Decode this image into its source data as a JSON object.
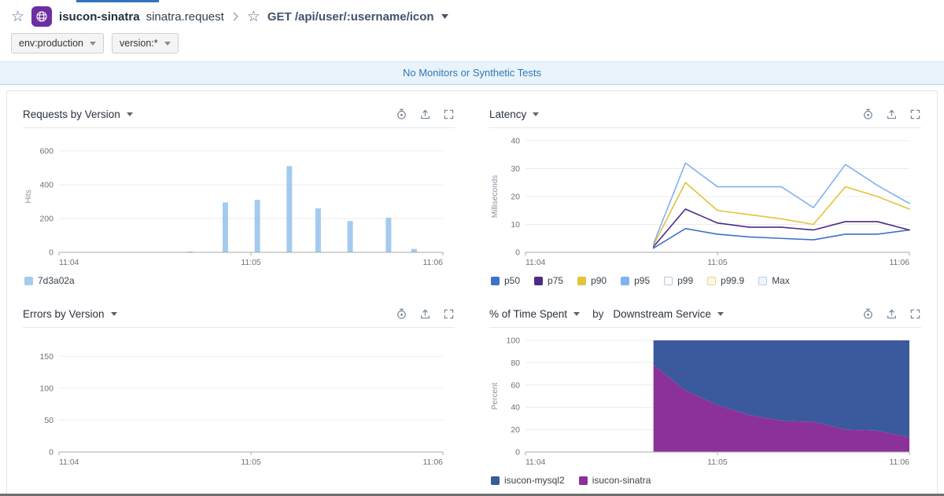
{
  "page": {
    "active_tab_indicator_color": "#3273bd"
  },
  "header": {
    "star_glyph": "☆",
    "service_name": "isucon-sinatra",
    "operation_name": "sinatra.request",
    "resource_name": "GET /api/user/:username/icon",
    "brand_color": "#6c2fa2",
    "service_icon": "globe-icon"
  },
  "filters": {
    "env": "env:production",
    "version": "version:*"
  },
  "banner": {
    "text": "No Monitors or Synthetic Tests",
    "text_color": "#3178b4",
    "bg_color": "#e9f3fb"
  },
  "panel_icons": [
    "create-monitor-icon",
    "export-icon",
    "fullscreen-icon"
  ],
  "chart_data": {
    "requests": {
      "type": "bar",
      "title": "Requests by Version",
      "ylabel": "Hits",
      "ymax": 660,
      "yticks": [
        0,
        200,
        400,
        600
      ],
      "x_start": "11:04:00",
      "x_end": "11:06:00",
      "xticks": [
        "11:04",
        "11:05",
        "11:06"
      ],
      "bar_color": "#a4cbee",
      "bars": [
        {
          "t": "11:04:41",
          "v": 5
        },
        {
          "t": "11:04:52",
          "v": 295
        },
        {
          "t": "11:05:02",
          "v": 310
        },
        {
          "t": "11:05:12",
          "v": 510
        },
        {
          "t": "11:05:21",
          "v": 260
        },
        {
          "t": "11:05:31",
          "v": 185
        },
        {
          "t": "11:05:43",
          "v": 205
        },
        {
          "t": "11:05:51",
          "v": 20
        }
      ],
      "legend": [
        {
          "label": "7d3a02a",
          "swatch": "#a4cbee",
          "border": "#a4cbee"
        }
      ]
    },
    "latency": {
      "type": "line",
      "title": "Latency",
      "ylabel": "Milliseconds",
      "ymax": 40,
      "yticks": [
        0,
        10,
        20,
        30,
        40
      ],
      "x_start": "11:04:00",
      "x_end": "11:06:00",
      "xticks": [
        "11:04",
        "11:05",
        "11:06"
      ],
      "x": [
        "11:04:40",
        "11:04:50",
        "11:05:00",
        "11:05:10",
        "11:05:20",
        "11:05:30",
        "11:05:40",
        "11:05:50",
        "11:06:00"
      ],
      "series": [
        {
          "name": "p50",
          "color": "#3f71c9",
          "values": [
            1.5,
            8.5,
            6.5,
            5.5,
            5,
            4.5,
            6.5,
            6.5,
            8
          ]
        },
        {
          "name": "p75",
          "color": "#4b2b86",
          "values": [
            2,
            15.5,
            10.5,
            9,
            9,
            8,
            11,
            11,
            8
          ]
        },
        {
          "name": "p90",
          "color": "#e2c43f",
          "values": [
            2.5,
            25,
            15,
            13.5,
            12,
            10,
            23.5,
            20,
            15.5
          ]
        },
        {
          "name": "p95",
          "color": "#7fb3ef",
          "values": [
            3,
            32,
            23.5,
            23.5,
            23.5,
            16,
            31.5,
            24,
            17.5
          ]
        }
      ],
      "legend": [
        {
          "label": "p50",
          "swatch": "#3f71c9",
          "border": "#3f71c9"
        },
        {
          "label": "p75",
          "swatch": "#4b2b86",
          "border": "#4b2b86"
        },
        {
          "label": "p90",
          "swatch": "#e2c43f",
          "border": "#e2c43f"
        },
        {
          "label": "p95",
          "swatch": "#7fb3ef",
          "border": "#7fb3ef"
        },
        {
          "label": "p99",
          "swatch": "#ffffff",
          "border": "#b9c6d8"
        },
        {
          "label": "p99.9",
          "swatch": "#fdf7e1",
          "border": "#e0d6a5"
        },
        {
          "label": "Max",
          "swatch": "#eff5fd",
          "border": "#b9cfec"
        }
      ]
    },
    "errors": {
      "type": "empty",
      "title": "Errors by Version",
      "ylabel": "",
      "ymax": 175,
      "yticks": [
        0,
        50,
        100,
        150
      ],
      "x_start": "11:04:00",
      "x_end": "11:06:00",
      "xticks": [
        "11:04",
        "11:05",
        "11:06"
      ],
      "legend": []
    },
    "time_spent": {
      "type": "stacked_area",
      "title": "% of Time Spent",
      "by_label": "by",
      "group_by": "Downstream Service",
      "ylabel": "Percent",
      "ymax": 100,
      "total": 100,
      "yticks": [
        0,
        20,
        40,
        60,
        80,
        100
      ],
      "x_start": "11:04:00",
      "x_end": "11:06:00",
      "xticks": [
        "11:04",
        "11:05",
        "11:06"
      ],
      "x": [
        "11:04:40",
        "11:04:50",
        "11:05:00",
        "11:05:10",
        "11:05:20",
        "11:05:30",
        "11:05:40",
        "11:05:50",
        "11:06:00"
      ],
      "bottom_series": {
        "name": "isucon-sinatra",
        "color": "#8c3199",
        "values": [
          78,
          55,
          42,
          33,
          28,
          27,
          20,
          19,
          13
        ]
      },
      "top_series": {
        "name": "isucon-mysql2",
        "color": "#3a5a9d"
      },
      "legend": [
        {
          "label": "isucon-mysql2",
          "swatch": "#3a5a9d",
          "border": "#3a5a9d"
        },
        {
          "label": "isucon-sinatra",
          "swatch": "#8c3199",
          "border": "#8c3199"
        }
      ]
    }
  }
}
